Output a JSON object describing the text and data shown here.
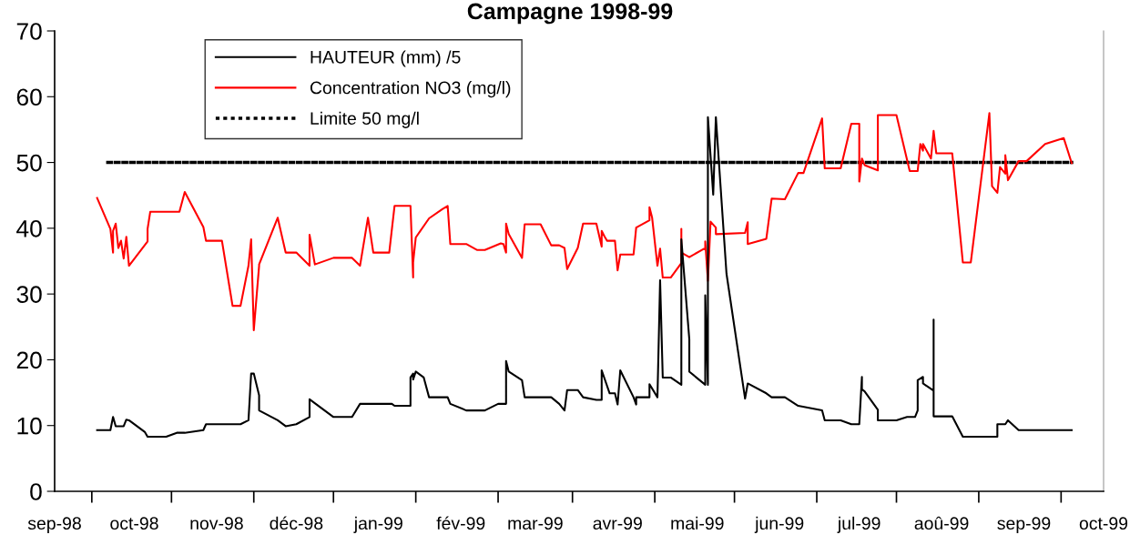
{
  "chart_data": {
    "type": "line",
    "title": "Campagne 1998-99",
    "xlim": [
      "1998-09-01",
      "1999-10-01"
    ],
    "xticks": [
      {
        "value": "1998-09-01",
        "label": "sep-98"
      },
      {
        "value": "1998-10-01",
        "label": "oct-98"
      },
      {
        "value": "1998-11-01",
        "label": "nov-98"
      },
      {
        "value": "1998-12-01",
        "label": "déc-98"
      },
      {
        "value": "1999-01-01",
        "label": "jan-99"
      },
      {
        "value": "1999-02-01",
        "label": "fév-99"
      },
      {
        "value": "1999-03-01",
        "label": "mar-99"
      },
      {
        "value": "1999-04-01",
        "label": "avr-99"
      },
      {
        "value": "1999-05-01",
        "label": "mai-99"
      },
      {
        "value": "1999-06-01",
        "label": "jun-99"
      },
      {
        "value": "1999-07-01",
        "label": "jul-99"
      },
      {
        "value": "1999-08-01",
        "label": "aoû-99"
      },
      {
        "value": "1999-09-01",
        "label": "sep-99"
      },
      {
        "value": "1999-10-01",
        "label": "oct-99"
      },
      {
        "value": "1998-09-15",
        "label": null
      },
      {
        "value": "1998-10-15",
        "label": null
      },
      {
        "value": "1998-11-15",
        "label": null
      },
      {
        "value": "1998-12-15",
        "label": null
      },
      {
        "value": "1999-01-15",
        "label": null
      },
      {
        "value": "1999-02-15",
        "label": null
      },
      {
        "value": "1999-03-15",
        "label": null
      },
      {
        "value": "1999-04-15",
        "label": null
      },
      {
        "value": "1999-05-15",
        "label": null
      },
      {
        "value": "1999-06-15",
        "label": null
      },
      {
        "value": "1999-07-15",
        "label": null
      },
      {
        "value": "1999-08-15",
        "label": null
      },
      {
        "value": "1999-09-15",
        "label": null
      }
    ],
    "ylim": [
      0,
      70
    ],
    "yticks": [
      0,
      10,
      20,
      30,
      40,
      50,
      60,
      70
    ],
    "grid": false,
    "legend": "top left",
    "marker": "none",
    "series": [
      {
        "name": "HAUTEUR (mm) /5",
        "color": "#000000",
        "line_style": "solid",
        "x": [
          "1998-09-17",
          "1998-09-22",
          "1998-09-23",
          "1998-09-24",
          "1998-09-27",
          "1998-09-28",
          "1998-09-29",
          "1998-10-05",
          "1998-10-06",
          "1998-10-13",
          "1998-10-17",
          "1998-10-20",
          "1998-10-27",
          "1998-10-28",
          "1998-11-10",
          "1998-11-13",
          "1998-11-14",
          "1998-11-15",
          "1998-11-17",
          "1998-11-17",
          "1998-11-24",
          "1998-11-27",
          "1998-12-01",
          "1998-12-06",
          "1998-12-06",
          "1998-12-15",
          "1998-12-22",
          "1998-12-25",
          "1999-01-06",
          "1999-01-07",
          "1999-01-13",
          "1999-01-13",
          "1999-01-14",
          "1999-01-14",
          "1999-01-15",
          "1999-01-18",
          "1999-01-20",
          "1999-01-25",
          "1999-01-27",
          "1999-01-28",
          "1999-02-03",
          "1999-02-10",
          "1999-02-15",
          "1999-02-18",
          "1999-02-18",
          "1999-02-19",
          "1999-02-24",
          "1999-02-25",
          "1999-03-07",
          "1999-03-10",
          "1999-03-12",
          "1999-03-13",
          "1999-03-17",
          "1999-03-19",
          "1999-03-24",
          "1999-03-26",
          "1999-03-26",
          "1999-03-29",
          "1999-03-31",
          "1999-04-01",
          "1999-04-02",
          "1999-04-07",
          "1999-04-08",
          "1999-04-08",
          "1999-04-13",
          "1999-04-13",
          "1999-04-16",
          "1999-04-17",
          "1999-04-18",
          "1999-04-21",
          "1999-04-25",
          "1999-04-25",
          "1999-04-28",
          "1999-04-28",
          "1999-05-04",
          "1999-05-04",
          "1999-05-05",
          "1999-05-05",
          "1999-05-07",
          "1999-05-08",
          "1999-05-12",
          "1999-05-19",
          "1999-05-20",
          "1999-05-27",
          "1999-05-29",
          "1999-06-03",
          "1999-06-08",
          "1999-06-17",
          "1999-06-18",
          "1999-06-24",
          "1999-06-28",
          "1999-07-01",
          "1999-07-02",
          "1999-07-02",
          "1999-07-03",
          "1999-07-08",
          "1999-07-08",
          "1999-07-15",
          "1999-07-19",
          "1999-07-22",
          "1999-07-23",
          "1999-07-23",
          "1999-07-25",
          "1999-07-25",
          "1999-07-29",
          "1999-07-29",
          "1999-07-29",
          "1999-08-05",
          "1999-08-09",
          "1999-08-22",
          "1999-08-22",
          "1999-08-25",
          "1999-08-26",
          "1999-08-30",
          "1999-09-19"
        ],
        "values": [
          9.3,
          9.3,
          11.3,
          9.9,
          9.9,
          10.9,
          10.8,
          9.0,
          8.3,
          8.3,
          8.9,
          8.9,
          9.3,
          10.2,
          10.2,
          10.8,
          17.9,
          17.9,
          14.6,
          12.3,
          10.8,
          9.9,
          10.2,
          11.3,
          14.0,
          11.3,
          11.3,
          13.3,
          13.3,
          13.0,
          13.0,
          17.3,
          17.9,
          17.0,
          18.2,
          17.3,
          14.3,
          14.3,
          14.3,
          13.3,
          12.3,
          12.3,
          13.3,
          13.3,
          19.8,
          18.2,
          16.9,
          14.3,
          14.3,
          13.3,
          12.3,
          15.4,
          15.4,
          14.3,
          13.9,
          13.9,
          18.4,
          14.9,
          14.9,
          13.2,
          18.4,
          14.3,
          13.2,
          14.3,
          14.3,
          16.3,
          14.3,
          32.1,
          17.3,
          17.3,
          16.2,
          38.3,
          23.1,
          18.2,
          16.2,
          29.8,
          16.2,
          56.9,
          45.1,
          56.9,
          33.1,
          14.1,
          16.4,
          14.9,
          14.3,
          14.3,
          13.0,
          12.3,
          10.8,
          10.8,
          10.2,
          10.2,
          17.4,
          15.5,
          15.2,
          12.4,
          10.8,
          10.8,
          11.3,
          11.3,
          12.3,
          16.9,
          17.4,
          16.4,
          15.3,
          26.1,
          11.4,
          11.4,
          8.3,
          8.3,
          10.2,
          10.2,
          10.8,
          9.3,
          9.3
        ]
      },
      {
        "name": "Concentration NO3 (mg/l)",
        "color": "#ff0000",
        "line_style": "solid",
        "x": [
          "1998-09-17",
          "1998-09-22",
          "1998-09-23",
          "1998-09-23",
          "1998-09-24",
          "1998-09-25",
          "1998-09-26",
          "1998-09-27",
          "1998-09-28",
          "1998-09-29",
          "1998-10-06",
          "1998-10-06",
          "1998-10-07",
          "1998-10-18",
          "1998-10-20",
          "1998-10-27",
          "1998-10-28",
          "1998-11-03",
          "1998-11-07",
          "1998-11-10",
          "1998-11-13",
          "1998-11-14",
          "1998-11-15",
          "1998-11-17",
          "1998-11-17",
          "1998-11-24",
          "1998-11-27",
          "1998-12-01",
          "1998-12-06",
          "1998-12-06",
          "1998-12-08",
          "1998-12-15",
          "1998-12-22",
          "1998-12-25",
          "1998-12-28",
          "1998-12-30",
          "1999-01-05",
          "1999-01-07",
          "1999-01-13",
          "1999-01-14",
          "1999-01-14",
          "1999-01-15",
          "1999-01-20",
          "1999-01-25",
          "1999-01-27",
          "1999-01-28",
          "1999-02-03",
          "1999-02-07",
          "1999-02-10",
          "1999-02-16",
          "1999-02-17",
          "1999-02-18",
          "1999-02-18",
          "1999-02-19",
          "1999-02-24",
          "1999-02-25",
          "1999-03-03",
          "1999-03-07",
          "1999-03-10",
          "1999-03-12",
          "1999-03-13",
          "1999-03-17",
          "1999-03-19",
          "1999-03-24",
          "1999-03-26",
          "1999-03-26",
          "1999-03-27",
          "1999-03-28",
          "1999-03-31",
          "1999-04-01",
          "1999-04-02",
          "1999-04-07",
          "1999-04-08",
          "1999-04-13",
          "1999-04-13",
          "1999-04-14",
          "1999-04-16",
          "1999-04-17",
          "1999-04-18",
          "1999-04-21",
          "1999-04-25",
          "1999-04-25",
          "1999-04-25",
          "1999-04-28",
          "1999-05-04",
          "1999-05-04",
          "1999-05-05",
          "1999-05-06",
          "1999-05-08",
          "1999-05-08",
          "1999-05-19",
          "1999-05-20",
          "1999-05-20",
          "1999-05-27",
          "1999-05-29",
          "1999-06-03",
          "1999-06-08",
          "1999-06-10",
          "1999-06-17",
          "1999-06-18",
          "1999-06-24",
          "1999-06-28",
          "1999-07-01",
          "1999-07-01",
          "1999-07-02",
          "1999-07-03",
          "1999-07-08",
          "1999-07-08",
          "1999-07-15",
          "1999-07-20",
          "1999-07-23",
          "1999-07-24",
          "1999-07-25",
          "1999-07-25",
          "1999-07-28",
          "1999-07-29",
          "1999-07-30",
          "1999-08-05",
          "1999-08-09",
          "1999-08-12",
          "1999-08-19",
          "1999-08-20",
          "1999-08-22",
          "1999-08-23",
          "1999-08-25",
          "1999-08-25",
          "1999-08-26",
          "1999-08-30",
          "1999-09-02",
          "1999-09-09",
          "1999-09-16",
          "1999-09-19"
        ],
        "values": [
          44.6,
          39.9,
          36.3,
          39.6,
          40.7,
          37.0,
          38.1,
          35.4,
          38.7,
          34.3,
          38.0,
          39.9,
          42.5,
          42.5,
          45.5,
          40.2,
          38.1,
          38.1,
          28.2,
          28.2,
          34.3,
          38.3,
          24.5,
          34.3,
          34.5,
          41.6,
          36.3,
          36.3,
          34.3,
          39.0,
          34.5,
          35.5,
          35.5,
          34.3,
          41.6,
          36.3,
          36.3,
          43.4,
          43.4,
          32.5,
          34.8,
          38.6,
          41.5,
          42.9,
          43.4,
          37.6,
          37.6,
          36.7,
          36.7,
          37.7,
          37.6,
          36.3,
          40.7,
          39.1,
          35.5,
          40.6,
          40.6,
          37.4,
          37.4,
          37.0,
          33.8,
          37.0,
          40.7,
          40.7,
          37.2,
          39.6,
          38.8,
          38.1,
          38.1,
          33.6,
          36.0,
          36.0,
          40.1,
          41.2,
          43.2,
          41.6,
          34.3,
          36.9,
          32.5,
          32.5,
          34.7,
          39.9,
          36.3,
          35.6,
          37.0,
          38.0,
          32.0,
          41.0,
          40.1,
          39.1,
          39.3,
          40.9,
          37.6,
          38.4,
          44.5,
          44.4,
          48.4,
          48.4,
          56.7,
          49.1,
          49.1,
          55.9,
          55.9,
          47.1,
          50.6,
          49.6,
          48.8,
          57.2,
          57.2,
          48.7,
          48.7,
          52.8,
          51.8,
          52.8,
          50.6,
          54.8,
          51.4,
          51.4,
          34.8,
          34.8,
          57.5,
          46.4,
          45.4,
          49.3,
          48.3,
          51.1,
          47.3,
          50.2,
          50.2,
          52.8,
          53.7,
          49.9
        ]
      },
      {
        "name": "Limite 50 mg/l",
        "color": "#000000",
        "line_style": "dotted",
        "x": [
          "1998-09-21",
          "1999-09-19"
        ],
        "values": [
          50,
          50
        ]
      }
    ]
  }
}
